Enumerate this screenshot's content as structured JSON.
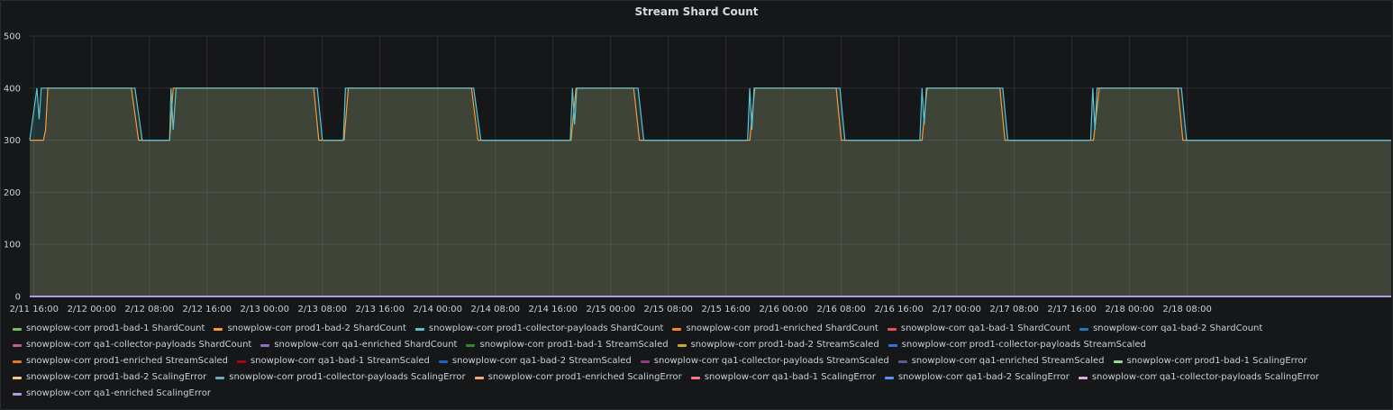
{
  "panel": {
    "title": "Stream Shard Count"
  },
  "chart_data": {
    "type": "area",
    "title": "Stream Shard Count",
    "ylim": [
      0,
      500
    ],
    "y_ticks": [
      "0",
      "100",
      "200",
      "300",
      "400",
      "500"
    ],
    "x_ticks": [
      "2/11 16:00",
      "2/12 00:00",
      "2/12 08:00",
      "2/12 16:00",
      "2/13 00:00",
      "2/13 08:00",
      "2/13 16:00",
      "2/14 00:00",
      "2/14 08:00",
      "2/14 16:00",
      "2/15 00:00",
      "2/15 08:00",
      "2/15 16:00",
      "2/16 00:00",
      "2/16 08:00",
      "2/16 16:00",
      "2/17 00:00",
      "2/17 08:00",
      "2/17 16:00",
      "2/18 00:00",
      "2/18 08:00"
    ],
    "x_range_hours": [
      -0.6,
      188.3
    ],
    "grid": true,
    "series": [
      {
        "name": "prod1-bad-1 ShardCount",
        "color": "#73bf69",
        "points": [
          [
            -0.6,
            0
          ],
          [
            188.3,
            0
          ]
        ]
      },
      {
        "name": "prod1-bad-2 ShardCount",
        "color": "#ff9830",
        "points": [
          [
            -0.6,
            300
          ],
          [
            1.3,
            300
          ],
          [
            1.6,
            320
          ],
          [
            1.9,
            400
          ],
          [
            13.5,
            400
          ],
          [
            14.5,
            300
          ],
          [
            18.8,
            300
          ],
          [
            19.3,
            400
          ],
          [
            38.8,
            400
          ],
          [
            39.5,
            300
          ],
          [
            43,
            300
          ],
          [
            43.6,
            400
          ],
          [
            60.7,
            400
          ],
          [
            61.6,
            300
          ],
          [
            74.5,
            300
          ],
          [
            75.2,
            400
          ],
          [
            83.2,
            400
          ],
          [
            84,
            300
          ],
          [
            99.3,
            300
          ],
          [
            100,
            400
          ],
          [
            111.3,
            400
          ],
          [
            112,
            300
          ],
          [
            123.2,
            300
          ],
          [
            123.9,
            400
          ],
          [
            134,
            400
          ],
          [
            134.7,
            300
          ],
          [
            147,
            300
          ],
          [
            147.8,
            400
          ],
          [
            158.7,
            400
          ],
          [
            159.4,
            300
          ],
          [
            188.3,
            300
          ]
        ]
      },
      {
        "name": "prod1-collector-payloads ShardCount",
        "color": "#5ac4d3",
        "points": [
          [
            -0.6,
            300
          ],
          [
            0.4,
            400
          ],
          [
            0.7,
            340
          ],
          [
            1.0,
            400
          ],
          [
            14,
            400
          ],
          [
            15,
            300
          ],
          [
            18.8,
            300
          ],
          [
            19,
            400
          ],
          [
            19.3,
            320
          ],
          [
            19.7,
            400
          ],
          [
            39.3,
            400
          ],
          [
            40,
            300
          ],
          [
            42.9,
            300
          ],
          [
            43.2,
            400
          ],
          [
            61,
            400
          ],
          [
            62,
            300
          ],
          [
            74.4,
            300
          ],
          [
            74.7,
            400
          ],
          [
            75,
            330
          ],
          [
            75.3,
            400
          ],
          [
            83.8,
            400
          ],
          [
            84.6,
            300
          ],
          [
            99,
            300
          ],
          [
            99.3,
            400
          ],
          [
            99.6,
            320
          ],
          [
            99.9,
            400
          ],
          [
            111.8,
            400
          ],
          [
            112.5,
            300
          ],
          [
            122.9,
            300
          ],
          [
            123.2,
            400
          ],
          [
            123.5,
            330
          ],
          [
            123.8,
            400
          ],
          [
            134.4,
            400
          ],
          [
            135.1,
            300
          ],
          [
            146.6,
            300
          ],
          [
            146.9,
            400
          ],
          [
            147.2,
            320
          ],
          [
            147.5,
            400
          ],
          [
            159.2,
            400
          ],
          [
            159.9,
            300
          ],
          [
            188.3,
            300
          ]
        ]
      }
    ],
    "legend": [
      [
        "snowplow-com",
        "prod1-bad-1 ShardCount",
        "#73bf69"
      ],
      [
        "snowplow-com-",
        "prod1-bad-2 ShardCount",
        "#ff9830"
      ],
      [
        "snowplow-com-",
        "prod1-collector-payloads ShardCount",
        "#5ac4d3"
      ],
      [
        "snowplow-com-",
        "prod1-enriched ShardCount",
        "#ff7f2a"
      ],
      [
        "snowplow-com",
        "qa1-bad-1 ShardCount",
        "#f2495c"
      ],
      [
        "snowplow-com",
        "qa1-bad-2 ShardCount",
        "#1f78c1"
      ],
      [
        "snowplow-com",
        "qa1-collector-payloads ShardCount",
        "#c15c9c"
      ],
      [
        "snowplow-com",
        "qa1-enriched ShardCount",
        "#8f6fc6"
      ],
      [
        "snowplow-com-",
        "prod1-bad-1 StreamScaled",
        "#37872d"
      ],
      [
        "snowplow-com-",
        "prod1-bad-2 StreamScaled",
        "#c8a82d"
      ],
      [
        "snowplow-com-",
        "prod1-collector-payloads StreamScaled",
        "#3274d9"
      ],
      [
        "snowplow-com-",
        "prod1-enriched StreamScaled",
        "#e0752d"
      ],
      [
        "snowplow-com-",
        "qa1-bad-1 StreamScaled",
        "#ad0317"
      ],
      [
        "snowplow-com-",
        "qa1-bad-2 StreamScaled",
        "#1f60c4"
      ],
      [
        "snowplow-com-",
        "qa1-collector-payloads StreamScaled",
        "#8e3c7c"
      ],
      [
        "snowplow-com",
        "qa1-enriched StreamScaled",
        "#5a5a8f"
      ],
      [
        "snowplow-com-",
        "prod1-bad-1 ScalingError",
        "#96d98d"
      ],
      [
        "snowplow-com-",
        "prod1-bad-2 ScalingError",
        "#ffcb7d"
      ],
      [
        "snowplow-com",
        "prod1-collector-payloads ScalingError",
        "#64b0c8"
      ],
      [
        "snowplow-com-",
        "prod1-enriched ScalingError",
        "#ffa77a"
      ],
      [
        "snowplow-com",
        "qa1-bad-1 ScalingError",
        "#ff7383"
      ],
      [
        "snowplow-com-",
        "qa1-bad-2 ScalingError",
        "#5794f2"
      ],
      [
        "snowplow-com-",
        "qa1-collector-payloads ScalingError",
        "#e5a8e2"
      ],
      [
        "snowplow-com",
        "qa1-enriched ScalingError",
        "#b39ddb"
      ]
    ]
  }
}
